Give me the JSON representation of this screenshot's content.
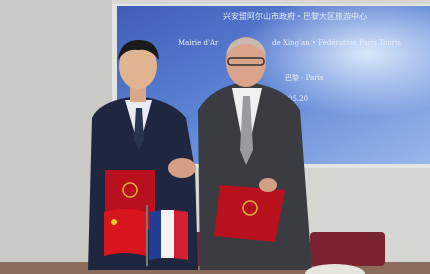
{
  "banner": {
    "line1": "兴安盟阿尔山市政府・巴黎大区旅游中心",
    "line2a": "Mairie d'Ar",
    "line2b": "de Xing'an • Fédération Paris Touris",
    "place": "巴黎 · Paris",
    "date": "05.20"
  }
}
